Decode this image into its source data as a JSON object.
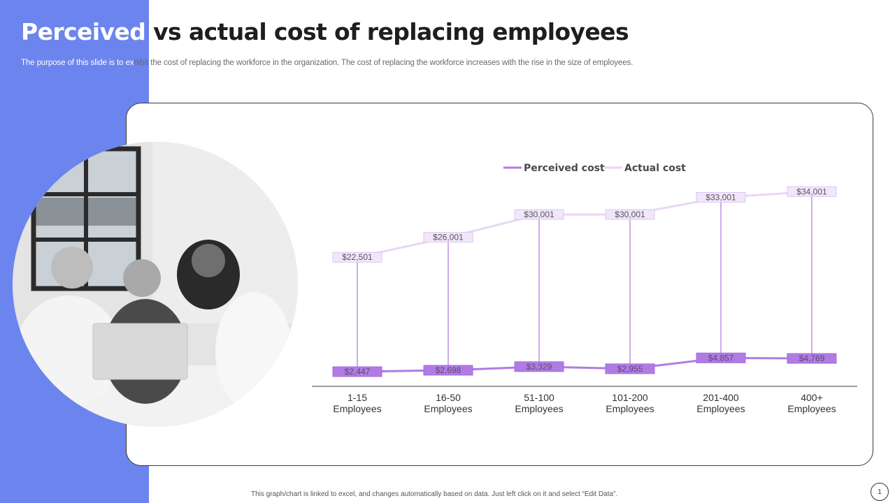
{
  "slide": {
    "title_part1": "Perceived",
    "title_part2": " vs actual cost of replacing employees",
    "subtitle_part1": "The purpose of this slide is to ex",
    "subtitle_part2": "hibit the cost of replacing the workforce in the organization. The cost of replacing the workforce increases with the rise in the size of employees.",
    "footer": "This graph/chart is linked to excel, and changes automatically based on data. Just left click on it and select “Edit Data”.",
    "page_number": "1"
  },
  "colors": {
    "accent_band": "#6b84ee",
    "perceived": "#b07ce4",
    "actual": "#e8d6f6"
  },
  "chart_data": {
    "type": "line",
    "title": "",
    "xlabel": "",
    "ylabel": "",
    "ylim": [
      0,
      36000
    ],
    "grid": false,
    "legend": "top-center",
    "categories": [
      [
        "1-15",
        "Employees"
      ],
      [
        "16-50",
        "Employees"
      ],
      [
        "51-100",
        "Employees"
      ],
      [
        "101-200",
        "Employees"
      ],
      [
        "201-400",
        "Employees"
      ],
      [
        "400+",
        "Employees"
      ]
    ],
    "series": [
      {
        "name": "Perceived cost",
        "values": [
          2447,
          2698,
          3329,
          2955,
          4857,
          4769
        ],
        "labels": [
          "$2,447",
          "$2,698",
          "$3,329",
          "$2,955",
          "$4,857",
          "$4,769"
        ]
      },
      {
        "name": "Actual cost",
        "values": [
          22501,
          26001,
          30001,
          30001,
          33001,
          34001
        ],
        "labels": [
          "$22,501",
          "$26,001",
          "$30,001",
          "$30,001",
          "$33,001",
          "$34,001"
        ]
      }
    ]
  }
}
